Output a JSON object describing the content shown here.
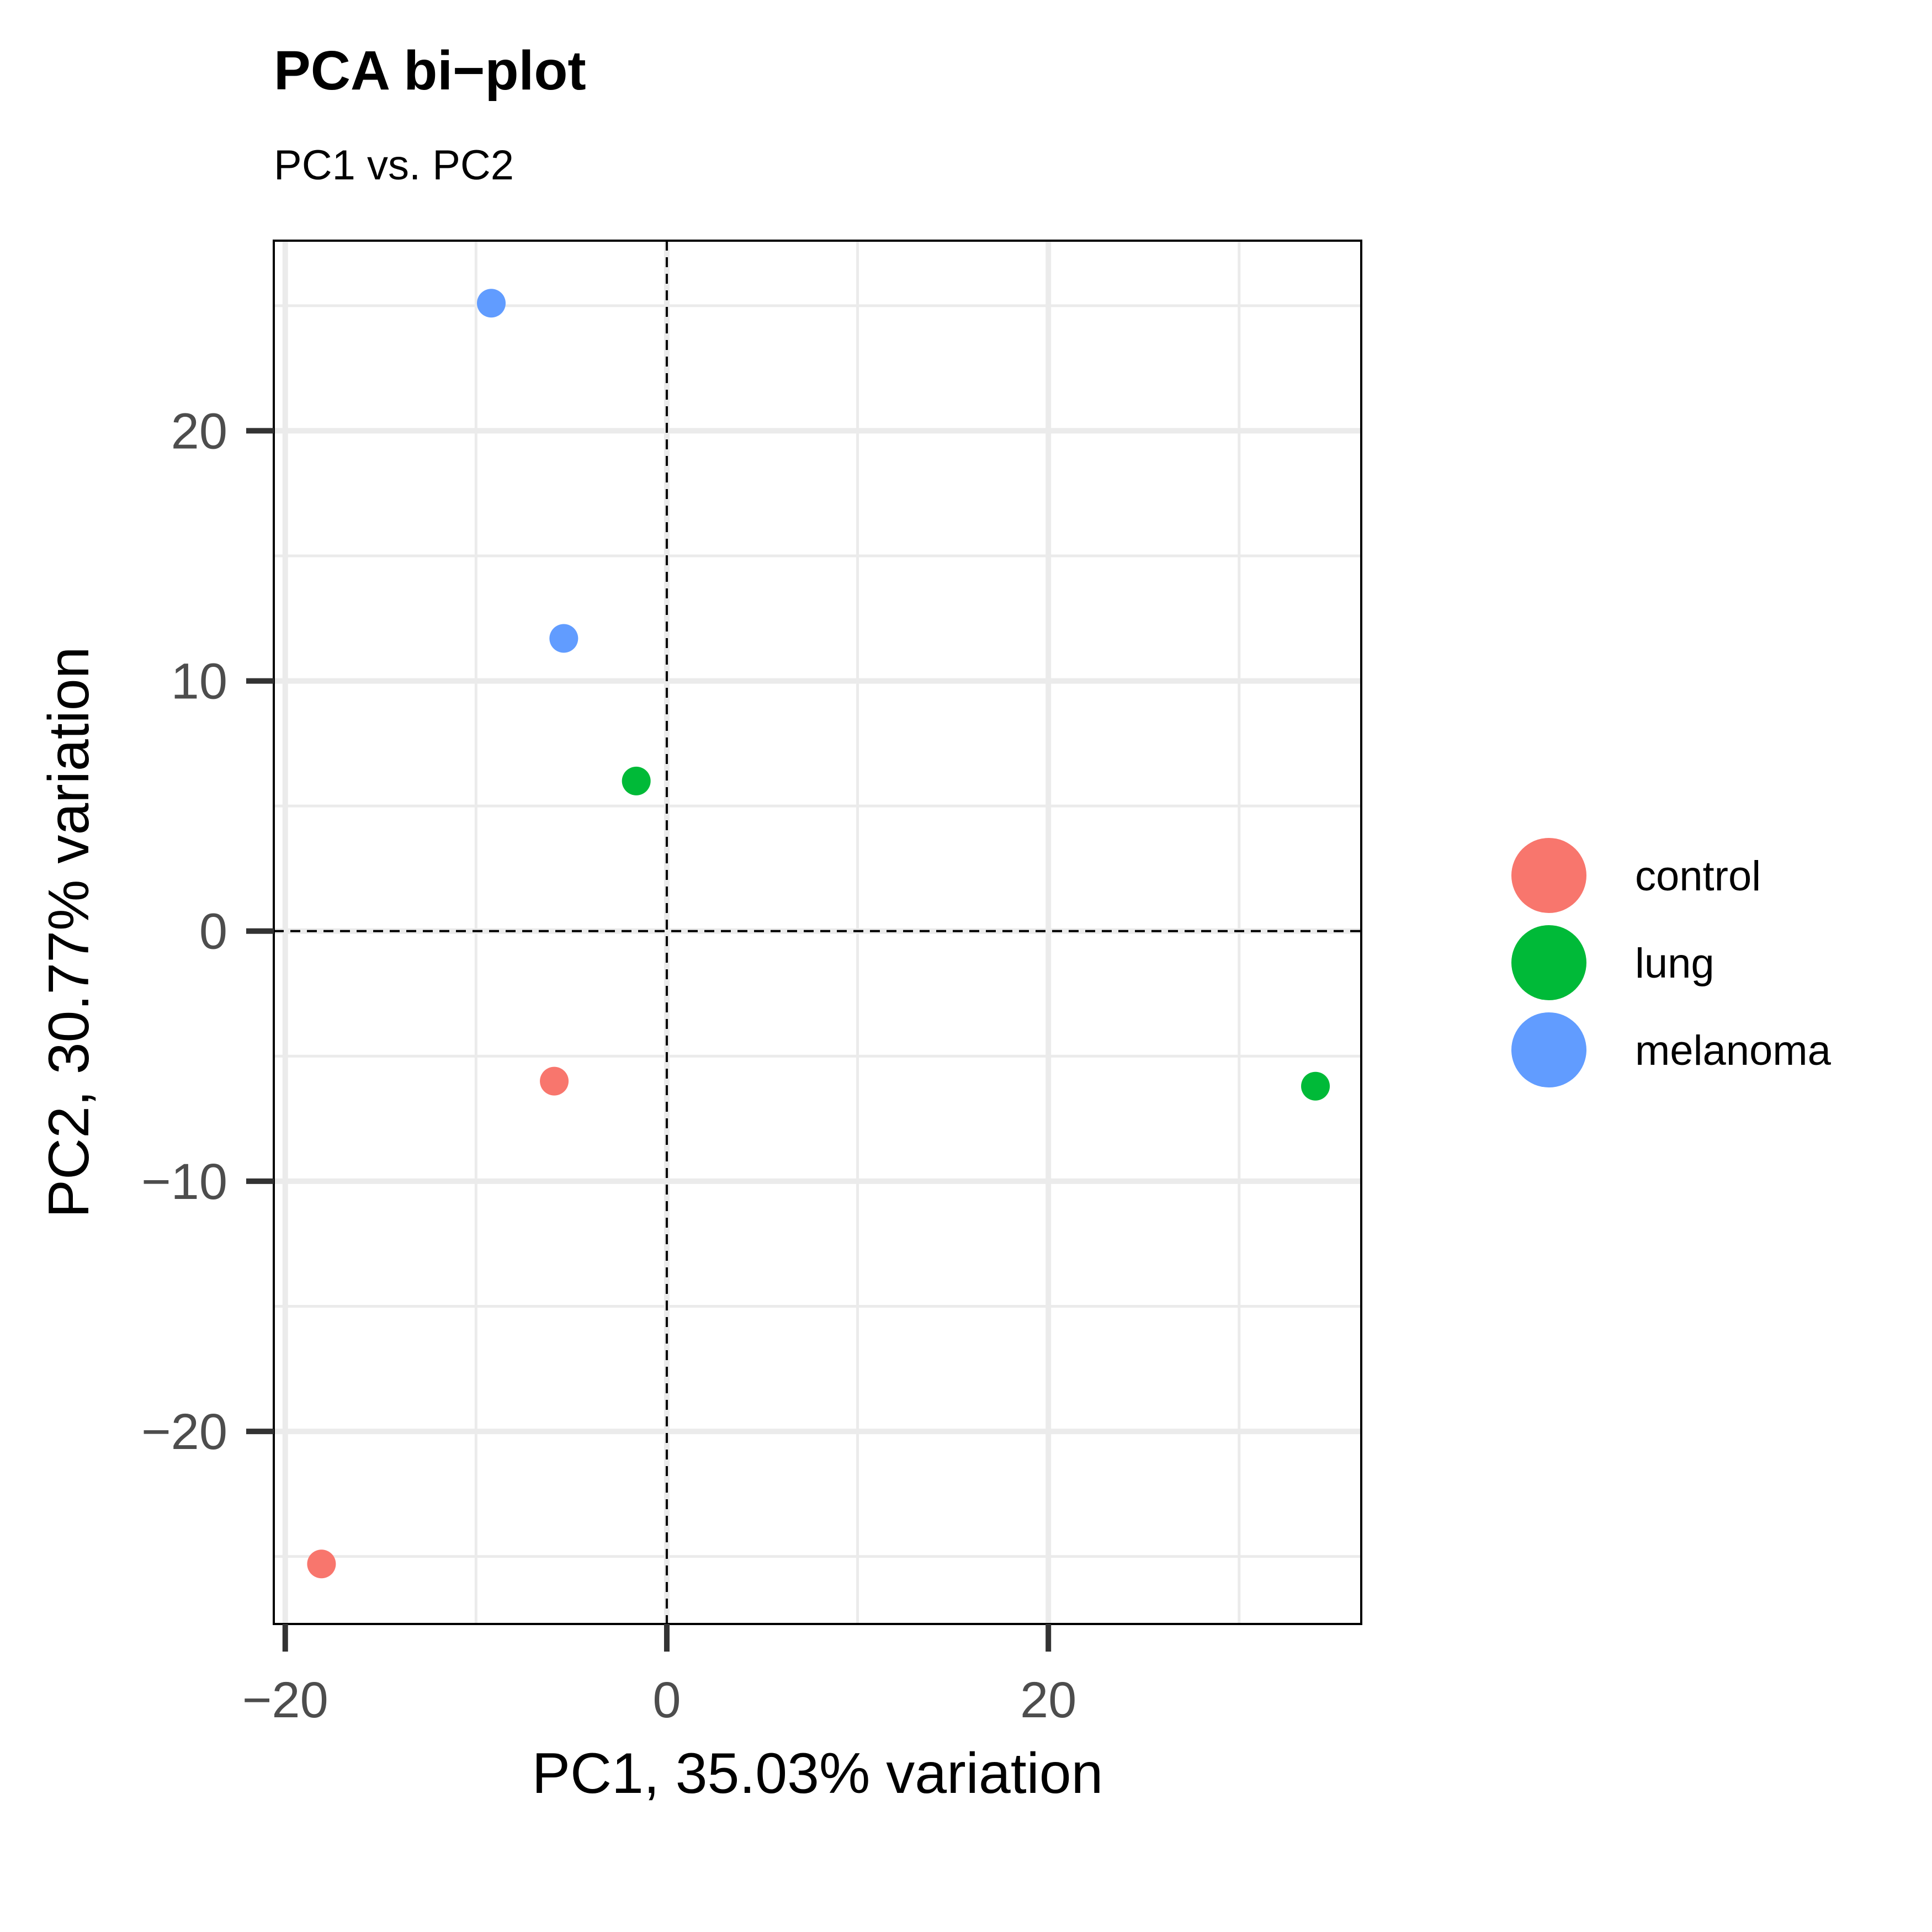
{
  "chart_data": {
    "type": "scatter",
    "title": "PCA bi−plot",
    "subtitle": "PC1 vs. PC2",
    "xlabel": "PC1, 35.03% variation",
    "ylabel": "PC2, 30.77% variation",
    "xlim": [
      -20.6,
      36.4
    ],
    "ylim": [
      -27.7,
      27.6
    ],
    "x_ticks": [
      -20,
      0,
      20
    ],
    "x_tick_labels": [
      "−20",
      "0",
      "20"
    ],
    "y_ticks": [
      -20,
      -10,
      0,
      10,
      20
    ],
    "y_tick_labels": [
      "−20",
      "−10",
      "0",
      "10",
      "20"
    ],
    "grid": true,
    "reference_lines": {
      "x": 0,
      "y": 0,
      "style": "dashed"
    },
    "legend_position": "right",
    "series": [
      {
        "name": "control",
        "color": "#F8766D",
        "points": [
          {
            "x": -5.9,
            "y": -6.0
          },
          {
            "x": -18.1,
            "y": -25.3
          }
        ]
      },
      {
        "name": "lung",
        "color": "#00BA38",
        "points": [
          {
            "x": -1.6,
            "y": 6.0
          },
          {
            "x": 34.0,
            "y": -6.2
          }
        ]
      },
      {
        "name": "melanoma",
        "color": "#619CFF",
        "points": [
          {
            "x": -9.2,
            "y": 25.1
          },
          {
            "x": -5.4,
            "y": 11.7
          }
        ]
      }
    ]
  }
}
